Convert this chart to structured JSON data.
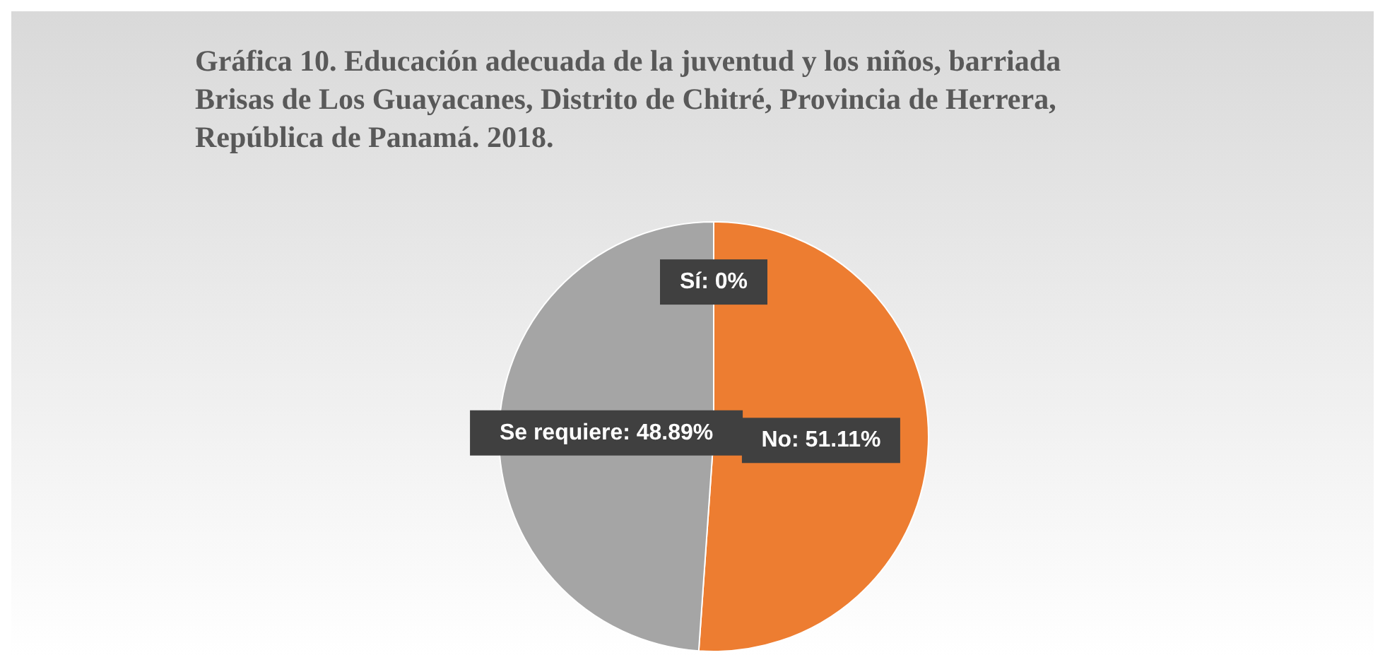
{
  "chart_data": {
    "type": "pie",
    "title": "Gráfica  10. Educación adecuada de la juventud y los niños, barriada Brisas de Los Guayacanes, Distrito de Chitré, Provincia de Herrera, República de Panamá. 2018.",
    "categories": [
      "Sí",
      "No",
      "Se requiere"
    ],
    "values": [
      0,
      51.11,
      48.89
    ],
    "colors": [
      "#4472c4",
      "#ed7d31",
      "#a5a5a5"
    ],
    "value_labels": [
      ": 0%",
      ": 51.11%",
      ": 48.89%"
    ],
    "legend": false
  }
}
